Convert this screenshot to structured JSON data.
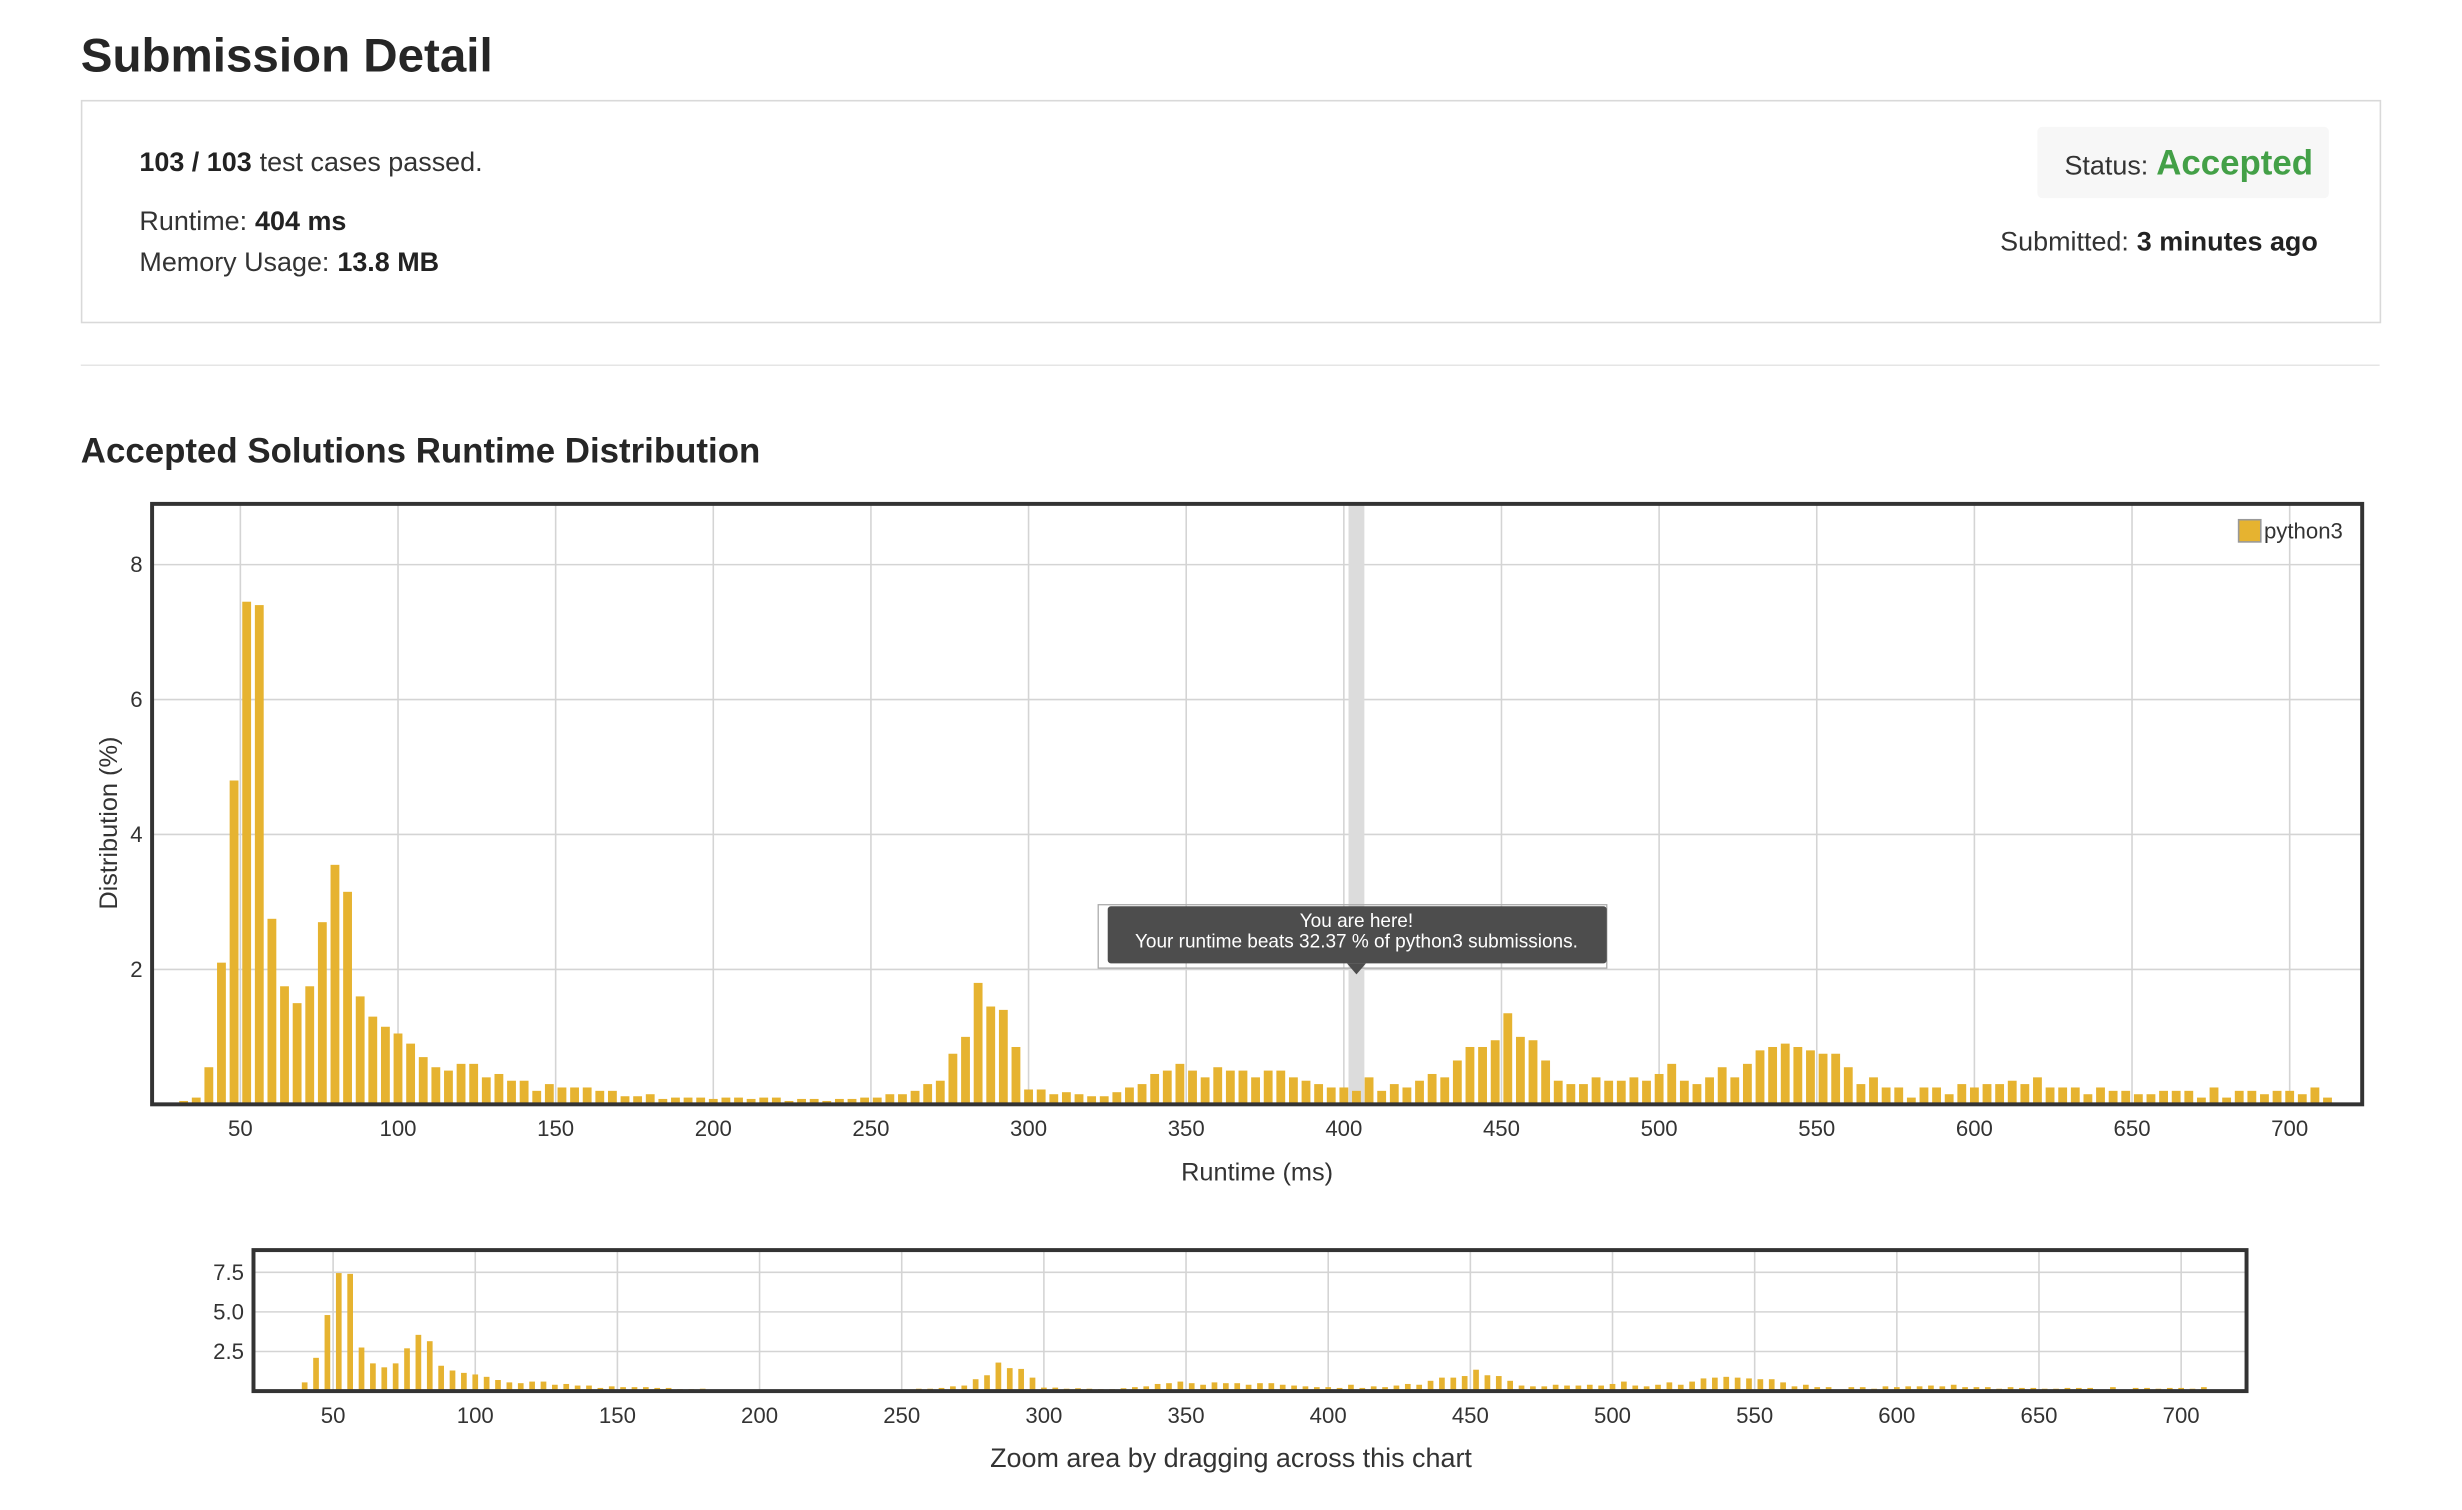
{
  "header": {
    "title": "Submission Detail"
  },
  "summary": {
    "test_cases": "103 / 103",
    "test_cases_text": "test cases passed.",
    "runtime_label": "Runtime:",
    "runtime": "404 ms",
    "memory_label": "Memory Usage:",
    "memory": "13.8 MB",
    "status_label": "Status:",
    "status": "Accepted",
    "submitted_label": "Submitted:",
    "submitted": "3 minutes ago"
  },
  "chart_data": [
    {
      "type": "bar",
      "title": "Accepted Solutions Runtime Distribution",
      "x_label": "Runtime (ms)",
      "y_label": "Distribution (%)",
      "x": [
        32,
        36,
        40,
        44,
        48,
        52,
        56,
        60,
        64,
        68,
        72,
        76,
        80,
        84,
        88,
        92,
        96,
        100,
        104,
        108,
        112,
        116,
        120,
        124,
        128,
        132,
        136,
        140,
        144,
        148,
        152,
        156,
        160,
        164,
        168,
        172,
        176,
        180,
        184,
        188,
        192,
        196,
        200,
        204,
        208,
        212,
        216,
        220,
        224,
        228,
        232,
        236,
        240,
        244,
        248,
        252,
        256,
        260,
        264,
        268,
        272,
        276,
        280,
        284,
        288,
        292,
        296,
        300,
        304,
        308,
        312,
        316,
        320,
        324,
        328,
        332,
        336,
        340,
        344,
        348,
        352,
        356,
        360,
        364,
        368,
        372,
        376,
        380,
        384,
        388,
        392,
        396,
        400,
        404,
        408,
        412,
        416,
        420,
        424,
        428,
        432,
        436,
        440,
        444,
        448,
        452,
        456,
        460,
        464,
        468,
        472,
        476,
        480,
        484,
        488,
        492,
        496,
        500,
        504,
        508,
        512,
        516,
        520,
        524,
        528,
        532,
        536,
        540,
        544,
        548,
        552,
        556,
        560,
        564,
        568,
        572,
        576,
        580,
        584,
        588,
        592,
        596,
        600,
        604,
        608,
        612,
        616,
        620,
        624,
        628,
        632,
        636,
        640,
        644,
        648,
        652,
        656,
        660,
        664,
        668,
        672,
        676,
        680,
        684,
        688,
        692,
        696,
        700,
        704,
        708,
        712
      ],
      "series": [
        {
          "name": "python3",
          "color": "#e6b330",
          "values": [
            0.05,
            0.1,
            0.55,
            2.1,
            4.8,
            7.45,
            7.4,
            2.75,
            1.75,
            1.5,
            1.75,
            2.7,
            3.55,
            3.15,
            1.6,
            1.3,
            1.15,
            1.05,
            0.9,
            0.7,
            0.55,
            0.5,
            0.6,
            0.6,
            0.4,
            0.45,
            0.35,
            0.35,
            0.2,
            0.3,
            0.25,
            0.25,
            0.25,
            0.2,
            0.2,
            0.12,
            0.12,
            0.15,
            0.08,
            0.1,
            0.1,
            0.1,
            0.08,
            0.1,
            0.1,
            0.08,
            0.1,
            0.1,
            0.05,
            0.08,
            0.08,
            0.05,
            0.08,
            0.08,
            0.1,
            0.1,
            0.15,
            0.15,
            0.2,
            0.3,
            0.35,
            0.75,
            1.0,
            1.8,
            1.45,
            1.4,
            0.85,
            0.22,
            0.22,
            0.15,
            0.18,
            0.15,
            0.12,
            0.12,
            0.18,
            0.25,
            0.3,
            0.45,
            0.5,
            0.6,
            0.5,
            0.4,
            0.55,
            0.5,
            0.5,
            0.4,
            0.5,
            0.5,
            0.4,
            0.35,
            0.3,
            0.25,
            0.25,
            0.2,
            0.4,
            0.2,
            0.3,
            0.25,
            0.35,
            0.45,
            0.4,
            0.65,
            0.85,
            0.85,
            0.95,
            1.35,
            1.0,
            0.95,
            0.65,
            0.35,
            0.3,
            0.3,
            0.4,
            0.35,
            0.35,
            0.4,
            0.35,
            0.45,
            0.6,
            0.35,
            0.3,
            0.4,
            0.55,
            0.4,
            0.6,
            0.8,
            0.85,
            0.9,
            0.85,
            0.8,
            0.75,
            0.75,
            0.55,
            0.3,
            0.4,
            0.25,
            0.25,
            0.1,
            0.25,
            0.25,
            0.15,
            0.3,
            0.25,
            0.3,
            0.3,
            0.35,
            0.3,
            0.4,
            0.25,
            0.25,
            0.25,
            0.15,
            0.25,
            0.2,
            0.2,
            0.15,
            0.15,
            0.2,
            0.2,
            0.2,
            0.1,
            0.25,
            0.1,
            0.2,
            0.2,
            0.15,
            0.2,
            0.2,
            0.15,
            0.25,
            0.1
          ]
        }
      ],
      "xlim": [
        22,
        723
      ],
      "xticks": [
        50,
        100,
        150,
        200,
        250,
        300,
        350,
        400,
        450,
        500,
        550,
        600,
        650,
        700
      ],
      "ylim": [
        0,
        8.9
      ],
      "yticks": [
        2,
        4,
        6,
        8
      ],
      "grid": true,
      "legend": "top-right",
      "annotation": {
        "x": 404,
        "title": "You are here!",
        "text": "Your runtime beats 32.37 % of python3 submissions."
      }
    },
    {
      "type": "bar",
      "caption": "Zoom area by dragging across this chart",
      "xlim": [
        22,
        723
      ],
      "xticks": [
        50,
        100,
        150,
        200,
        250,
        300,
        350,
        400,
        450,
        500,
        550,
        600,
        650,
        700
      ],
      "ylim": [
        0,
        8.9
      ],
      "yticks": [
        2.5,
        {
          "value": 5,
          "label": "5.0"
        },
        7.5
      ],
      "grid": true
    }
  ]
}
